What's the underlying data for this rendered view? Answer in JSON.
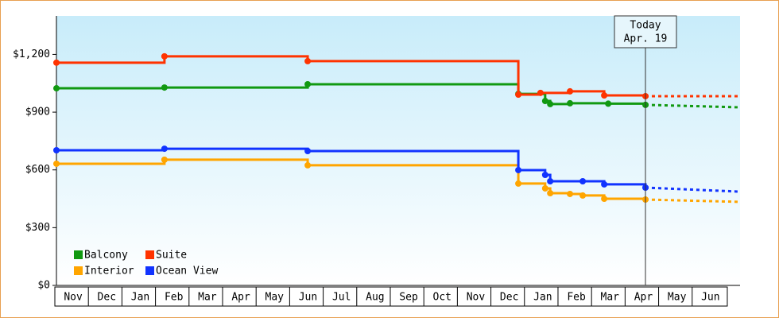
{
  "chart_data": {
    "type": "step-line",
    "categories": [
      "Nov",
      "Dec",
      "Jan",
      "Feb",
      "Mar",
      "Apr",
      "May",
      "Jun",
      "Jul",
      "Aug",
      "Sep",
      "Oct",
      "Nov",
      "Dec",
      "Jan",
      "Feb",
      "Mar",
      "Apr",
      "May",
      "Jun"
    ],
    "xlim": [
      0,
      20.38
    ],
    "ylim": [
      0,
      1400
    ],
    "yticks": [
      {
        "value": 0,
        "label": "$0"
      },
      {
        "value": 300,
        "label": "$300"
      },
      {
        "value": 600,
        "label": "$600"
      },
      {
        "value": 900,
        "label": "$900"
      },
      {
        "value": 1200,
        "label": "$1,200"
      }
    ],
    "grid": false,
    "today": {
      "x": 17.56,
      "label": "Today",
      "date": "Apr. 19"
    },
    "series": [
      {
        "name": "Balcony",
        "color": "#119911",
        "x": [
          0,
          3.22,
          7.49,
          13.77,
          14.57,
          14.72,
          15.31,
          16.45,
          17.56
        ],
        "values": [
          1024,
          1028,
          1045,
          995,
          958,
          942,
          946,
          944,
          938
        ],
        "forecast": {
          "x": [
            17.56,
            20.38
          ],
          "values": [
            938,
            925
          ]
        }
      },
      {
        "name": "Suite",
        "color": "#ff3300",
        "x": [
          0,
          3.22,
          7.49,
          13.77,
          14.43,
          15.31,
          16.33,
          17.56
        ],
        "values": [
          1157,
          1190,
          1165,
          991,
          1000,
          1008,
          987,
          983
        ],
        "forecast": {
          "x": [
            17.56,
            20.38
          ],
          "values": [
            983,
            983
          ]
        }
      },
      {
        "name": "Interior",
        "color": "#ffa500",
        "x": [
          0,
          3.22,
          7.49,
          13.77,
          14.57,
          14.72,
          15.31,
          15.69,
          16.33,
          17.56
        ],
        "values": [
          632,
          653,
          624,
          529,
          504,
          479,
          475,
          467,
          450,
          446
        ],
        "forecast": {
          "x": [
            17.56,
            20.38
          ],
          "values": [
            446,
            434
          ]
        }
      },
      {
        "name": "Ocean View",
        "color": "#1133ff",
        "x": [
          0,
          3.22,
          7.49,
          13.77,
          14.57,
          14.72,
          15.69,
          16.33,
          17.56
        ],
        "values": [
          702,
          710,
          698,
          599,
          574,
          541,
          541,
          525,
          508
        ],
        "forecast": {
          "x": [
            17.56,
            20.38
          ],
          "values": [
            508,
            487
          ]
        }
      }
    ]
  }
}
